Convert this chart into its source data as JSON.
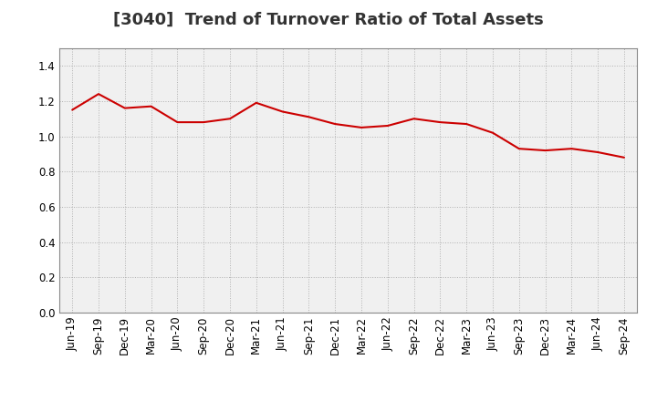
{
  "title": "[3040]  Trend of Turnover Ratio of Total Assets",
  "labels": [
    "Jun-19",
    "Sep-19",
    "Dec-19",
    "Mar-20",
    "Jun-20",
    "Sep-20",
    "Dec-20",
    "Mar-21",
    "Jun-21",
    "Sep-21",
    "Dec-21",
    "Mar-22",
    "Jun-22",
    "Sep-22",
    "Dec-22",
    "Mar-23",
    "Jun-23",
    "Sep-23",
    "Dec-23",
    "Mar-24",
    "Jun-24",
    "Sep-24"
  ],
  "values": [
    1.15,
    1.24,
    1.16,
    1.17,
    1.08,
    1.08,
    1.1,
    1.19,
    1.14,
    1.11,
    1.07,
    1.05,
    1.06,
    1.1,
    1.08,
    1.07,
    1.02,
    0.93,
    0.92,
    0.93,
    0.91,
    0.88
  ],
  "line_color": "#cc0000",
  "background_color": "#ffffff",
  "plot_bg_color": "#f0f0f0",
  "grid_color": "#aaaaaa",
  "ylim": [
    0.0,
    1.5
  ],
  "yticks": [
    0.0,
    0.2,
    0.4,
    0.6,
    0.8,
    1.0,
    1.2,
    1.4
  ],
  "title_fontsize": 13,
  "tick_fontsize": 8.5
}
